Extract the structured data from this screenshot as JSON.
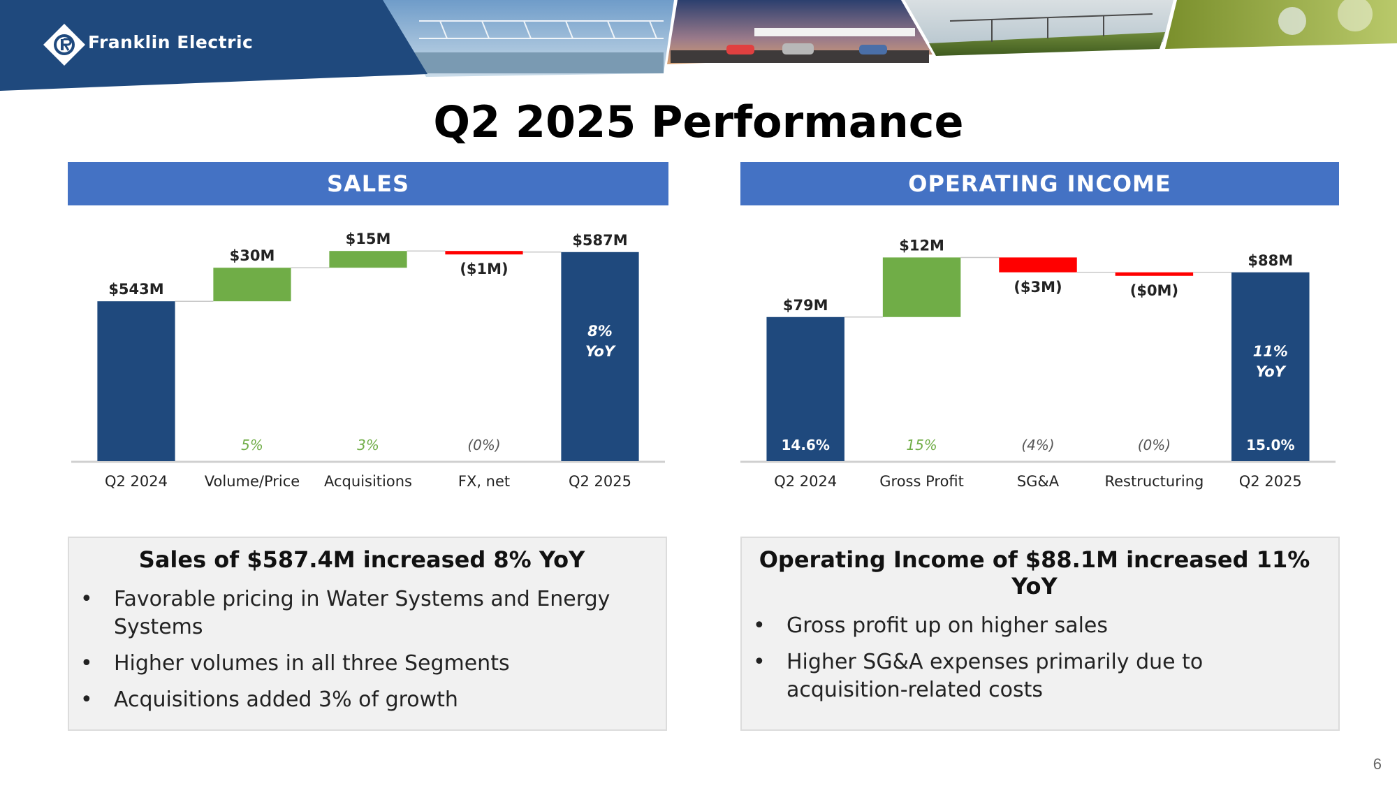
{
  "brand": {
    "name": "Franklin Electric",
    "primary": "#1f497d",
    "accent": "#4472c4"
  },
  "page": {
    "title": "Q2 2025 Performance",
    "number": "6"
  },
  "colors": {
    "total": "#1f497d",
    "increase": "#70ad47",
    "decrease": "#ff0000",
    "connector": "#c8c8c8"
  },
  "sales": {
    "header": "SALES",
    "summary_title": "Sales of $587.4M increased 8% YoY",
    "bullets": [
      "Favorable pricing in Water Systems and Energy Systems",
      "Higher volumes in all three Segments",
      "Acquisitions added 3% of growth"
    ]
  },
  "operating_income": {
    "header": "OPERATING INCOME",
    "summary_title": "Operating Income of $88.1M increased 11% YoY",
    "bullets": [
      "Gross profit up on higher sales",
      "Higher SG&A expenses primarily due to acquisition-related costs"
    ]
  },
  "chart_data": [
    {
      "type": "bar",
      "subtype": "waterfall",
      "title": "SALES",
      "categories": [
        "Q2 2024",
        "Volume/Price",
        "Acquisitions",
        "FX, net",
        "Q2 2025"
      ],
      "values": [
        543,
        30,
        15,
        -1,
        587
      ],
      "kinds": [
        "total",
        "increase",
        "increase",
        "decrease",
        "total"
      ],
      "value_labels": [
        "$543M",
        "$30M",
        "$15M",
        "($1M)",
        "$587M"
      ],
      "bottom_labels": [
        "",
        "5%",
        "3%",
        "(0%)",
        ""
      ],
      "inner_labels": [
        "",
        "",
        "",
        "",
        "8% YoY"
      ],
      "ylim": [
        400,
        600
      ]
    },
    {
      "type": "bar",
      "subtype": "waterfall",
      "title": "OPERATING INCOME",
      "categories": [
        "Q2 2024",
        "Gross Profit",
        "SG&A",
        "Restructuring",
        "Q2 2025"
      ],
      "values": [
        79,
        12,
        -3,
        0,
        88
      ],
      "kinds": [
        "total",
        "increase",
        "decrease",
        "decrease",
        "total"
      ],
      "value_labels": [
        "$79M",
        "$12M",
        "($3M)",
        "($0M)",
        "$88M"
      ],
      "bottom_labels": [
        "14.6%",
        "15%",
        "(4%)",
        "(0%)",
        "15.0%"
      ],
      "inner_labels": [
        "",
        "",
        "",
        "",
        "11% YoY"
      ],
      "ylim": [
        50,
        95
      ]
    }
  ]
}
